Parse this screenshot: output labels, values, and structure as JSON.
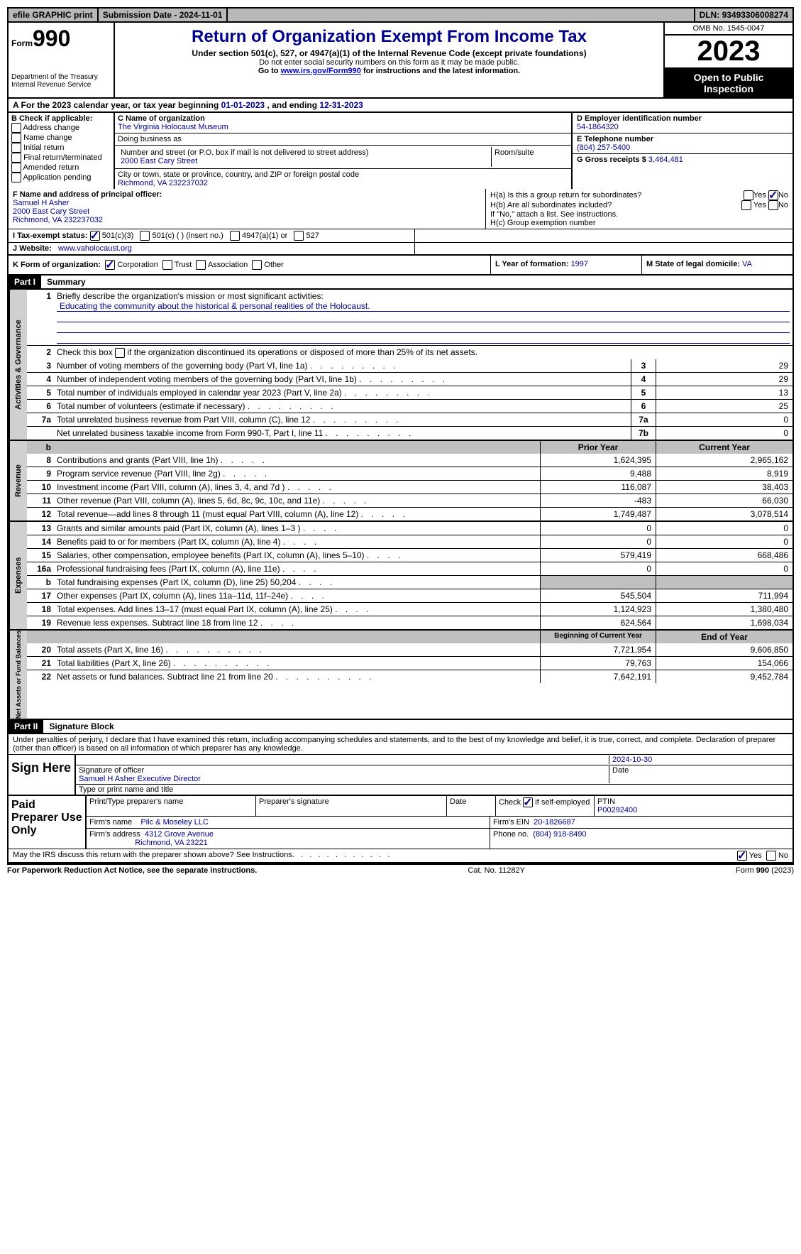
{
  "topbar": {
    "efile": "efile GRAPHIC print",
    "submission_label": "Submission Date - ",
    "submission_date": "2024-11-01",
    "dln_label": "DLN: ",
    "dln": "93493306008274"
  },
  "header": {
    "form_label": "Form",
    "form_number": "990",
    "dept": "Department of the Treasury\nInternal Revenue Service",
    "title": "Return of Organization Exempt From Income Tax",
    "sub1": "Under section 501(c), 527, or 4947(a)(1) of the Internal Revenue Code (except private foundations)",
    "sub2": "Do not enter social security numbers on this form as it may be made public.",
    "sub3_pre": "Go to ",
    "sub3_link": "www.irs.gov/Form990",
    "sub3_post": " for instructions and the latest information.",
    "omb": "OMB No. 1545-0047",
    "year": "2023",
    "inspection": "Open to Public Inspection"
  },
  "row_a": {
    "text_pre": "A For the 2023 calendar year, or tax year beginning ",
    "begin": "01-01-2023",
    "mid": "   , and ending ",
    "end": "12-31-2023"
  },
  "box_b": {
    "label": "B Check if applicable:",
    "items": [
      "Address change",
      "Name change",
      "Initial return",
      "Final return/terminated",
      "Amended return",
      "Application pending"
    ]
  },
  "box_c": {
    "name_label": "C Name of organization",
    "name": "The Virginia Holocaust Museum",
    "dba_label": "Doing business as",
    "dba": "",
    "street_label": "Number and street (or P.O. box if mail is not delivered to street address)",
    "street": "2000 East Cary Street",
    "room_label": "Room/suite",
    "room": "",
    "city_label": "City or town, state or province, country, and ZIP or foreign postal code",
    "city": "Richmond, VA  232237032"
  },
  "box_d": {
    "label": "D Employer identification number",
    "value": "54-1864320"
  },
  "box_e": {
    "label": "E Telephone number",
    "value": "(804) 257-5400"
  },
  "box_g": {
    "label": "G Gross receipts $ ",
    "value": "3,464,481"
  },
  "box_f": {
    "label": "F  Name and address of principal officer:",
    "name": "Samuel H Asher",
    "street": "2000 East Cary Street",
    "city": "Richmond, VA  232237032"
  },
  "box_h": {
    "ha_label": "H(a)  Is this a group return for subordinates?",
    "hb_label": "H(b)  Are all subordinates included?",
    "hb_note": "If \"No,\" attach a list. See instructions.",
    "hc_label": "H(c)  Group exemption number",
    "yes": "Yes",
    "no": "No"
  },
  "row_i": {
    "label": "I   Tax-exempt status:",
    "opts": [
      "501(c)(3)",
      "501(c) (  ) (insert no.)",
      "4947(a)(1) or",
      "527"
    ]
  },
  "row_j": {
    "label": "J   Website:",
    "value": "www.vaholocaust.org"
  },
  "row_k": {
    "label": "K Form of organization:",
    "opts": [
      "Corporation",
      "Trust",
      "Association",
      "Other"
    ]
  },
  "row_l": {
    "label": "L Year of formation: ",
    "value": "1997"
  },
  "row_m": {
    "label": "M State of legal domicile: ",
    "value": "VA"
  },
  "part1": {
    "header": "Part I",
    "title": "Summary"
  },
  "summary": {
    "sections": [
      {
        "vlabel": "Activities & Governance",
        "mission_label": "Briefly describe the organization's mission or most significant activities:",
        "mission": "Educating the community about the historical & personal realities of the Holocaust.",
        "line2": "Check this box      if the organization discontinued its operations or disposed of more than 25% of its net assets.",
        "rows": [
          {
            "n": "3",
            "d": "Number of voting members of the governing body (Part VI, line 1a)",
            "box": "3",
            "v": "29"
          },
          {
            "n": "4",
            "d": "Number of independent voting members of the governing body (Part VI, line 1b)",
            "box": "4",
            "v": "29"
          },
          {
            "n": "5",
            "d": "Total number of individuals employed in calendar year 2023 (Part V, line 2a)",
            "box": "5",
            "v": "13"
          },
          {
            "n": "6",
            "d": "Total number of volunteers (estimate if necessary)",
            "box": "6",
            "v": "25"
          },
          {
            "n": "7a",
            "d": "Total unrelated business revenue from Part VIII, column (C), line 12",
            "box": "7a",
            "v": "0"
          },
          {
            "n": "",
            "d": "Net unrelated business taxable income from Form 990-T, Part I, line 11",
            "box": "7b",
            "v": "0"
          }
        ]
      }
    ],
    "rev_header": {
      "prior": "Prior Year",
      "current": "Current Year"
    },
    "revenue": {
      "vlabel": "Revenue",
      "rows": [
        {
          "n": "8",
          "d": "Contributions and grants (Part VIII, line 1h)",
          "p": "1,624,395",
          "c": "2,965,162"
        },
        {
          "n": "9",
          "d": "Program service revenue (Part VIII, line 2g)",
          "p": "9,488",
          "c": "8,919"
        },
        {
          "n": "10",
          "d": "Investment income (Part VIII, column (A), lines 3, 4, and 7d )",
          "p": "116,087",
          "c": "38,403"
        },
        {
          "n": "11",
          "d": "Other revenue (Part VIII, column (A), lines 5, 6d, 8c, 9c, 10c, and 11e)",
          "p": "-483",
          "c": "66,030"
        },
        {
          "n": "12",
          "d": "Total revenue—add lines 8 through 11 (must equal Part VIII, column (A), line 12)",
          "p": "1,749,487",
          "c": "3,078,514"
        }
      ]
    },
    "expenses": {
      "vlabel": "Expenses",
      "rows": [
        {
          "n": "13",
          "d": "Grants and similar amounts paid (Part IX, column (A), lines 1–3 )",
          "p": "0",
          "c": "0"
        },
        {
          "n": "14",
          "d": "Benefits paid to or for members (Part IX, column (A), line 4)",
          "p": "0",
          "c": "0"
        },
        {
          "n": "15",
          "d": "Salaries, other compensation, employee benefits (Part IX, column (A), lines 5–10)",
          "p": "579,419",
          "c": "668,486"
        },
        {
          "n": "16a",
          "d": "Professional fundraising fees (Part IX, column (A), line 11e)",
          "p": "0",
          "c": "0"
        },
        {
          "n": "b",
          "d": "Total fundraising expenses (Part IX, column (D), line 25) 50,204",
          "p": "",
          "c": "",
          "shaded": true
        },
        {
          "n": "17",
          "d": "Other expenses (Part IX, column (A), lines 11a–11d, 11f–24e)",
          "p": "545,504",
          "c": "711,994"
        },
        {
          "n": "18",
          "d": "Total expenses. Add lines 13–17 (must equal Part IX, column (A), line 25)",
          "p": "1,124,923",
          "c": "1,380,480"
        },
        {
          "n": "19",
          "d": "Revenue less expenses. Subtract line 18 from line 12",
          "p": "624,564",
          "c": "1,698,034"
        }
      ]
    },
    "net_header": {
      "prior": "Beginning of Current Year",
      "current": "End of Year"
    },
    "netassets": {
      "vlabel": "Net Assets or Fund Balances",
      "rows": [
        {
          "n": "20",
          "d": "Total assets (Part X, line 16)",
          "p": "7,721,954",
          "c": "9,606,850"
        },
        {
          "n": "21",
          "d": "Total liabilities (Part X, line 26)",
          "p": "79,763",
          "c": "154,066"
        },
        {
          "n": "22",
          "d": "Net assets or fund balances. Subtract line 21 from line 20",
          "p": "7,642,191",
          "c": "9,452,784"
        }
      ]
    }
  },
  "part2": {
    "header": "Part II",
    "title": "Signature Block"
  },
  "perjury": "Under penalties of perjury, I declare that I have examined this return, including accompanying schedules and statements, and to the best of my knowledge and belief, it is true, correct, and complete. Declaration of preparer (other than officer) is based on all information of which preparer has any knowledge.",
  "sign": {
    "label": "Sign Here",
    "date": "2024-10-30",
    "sig_label": "Signature of officer",
    "date_label": "Date",
    "name": "Samuel H Asher  Executive Director",
    "name_label": "Type or print name and title"
  },
  "preparer": {
    "label": "Paid Preparer Use Only",
    "h1": "Print/Type preparer's name",
    "h2": "Preparer's signature",
    "h3": "Date",
    "h4_pre": "Check ",
    "h4_post": " if self-employed",
    "h5": "PTIN",
    "ptin": "P00292400",
    "firm_name_label": "Firm's name",
    "firm_name": "Pilc & Moseley LLC",
    "firm_ein_label": "Firm's EIN",
    "firm_ein": "20-1826687",
    "firm_addr_label": "Firm's address",
    "firm_addr1": "4312 Grove Avenue",
    "firm_addr2": "Richmond, VA  23221",
    "phone_label": "Phone no.",
    "phone": "(804) 918-8490"
  },
  "discuss": {
    "text": "May the IRS discuss this return with the preparer shown above? See Instructions.",
    "yes": "Yes",
    "no": "No"
  },
  "footer": {
    "left": "For Paperwork Reduction Act Notice, see the separate instructions.",
    "mid": "Cat. No. 11282Y",
    "right_pre": "Form ",
    "right_form": "990",
    "right_post": " (2023)"
  },
  "colors": {
    "link": "#0000cc",
    "heading": "#00008b",
    "bg": "#ffffff",
    "shade": "#c0c0c0",
    "topbar_bg": "#b8b8b8"
  }
}
